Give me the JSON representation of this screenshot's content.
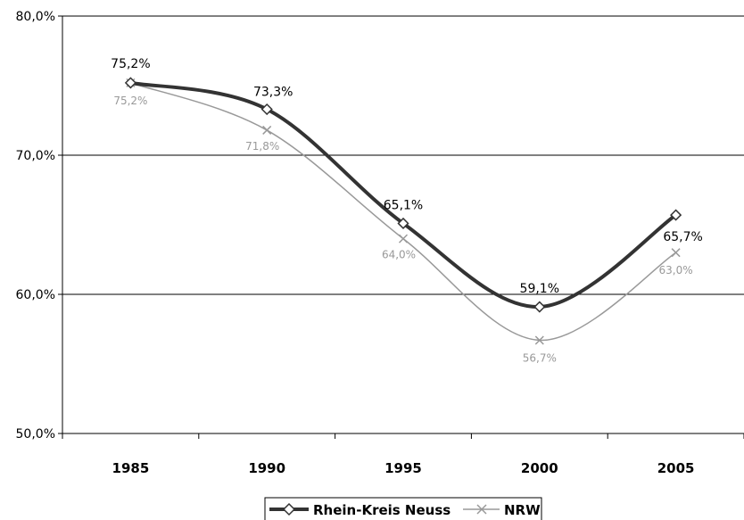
{
  "chart_data": {
    "type": "line",
    "title": "",
    "xlabel": "",
    "ylabel": "",
    "categories": [
      "1985",
      "1990",
      "1995",
      "2000",
      "2005"
    ],
    "ylim": [
      50,
      80
    ],
    "y_ticks": [
      "50,0%",
      "60,0%",
      "70,0%",
      "80,0%"
    ],
    "y_tick_values": [
      50,
      60,
      70,
      80
    ],
    "grid": true,
    "legend_position": "bottom",
    "smooth": true,
    "series": [
      {
        "name": "Rhein-Kreis Neuss",
        "values": [
          75.2,
          73.3,
          65.1,
          59.1,
          65.7
        ],
        "labels": [
          "75,2%",
          "73,3%",
          "65,1%",
          "59,1%",
          "65,7%"
        ],
        "color": "#333333",
        "marker": "diamond"
      },
      {
        "name": "NRW",
        "values": [
          75.2,
          71.8,
          64.0,
          56.7,
          63.0
        ],
        "labels": [
          "75,2%",
          "71,8%",
          "64,0%",
          "56,7%",
          "63,0%"
        ],
        "color": "#999999",
        "marker": "x"
      }
    ]
  }
}
